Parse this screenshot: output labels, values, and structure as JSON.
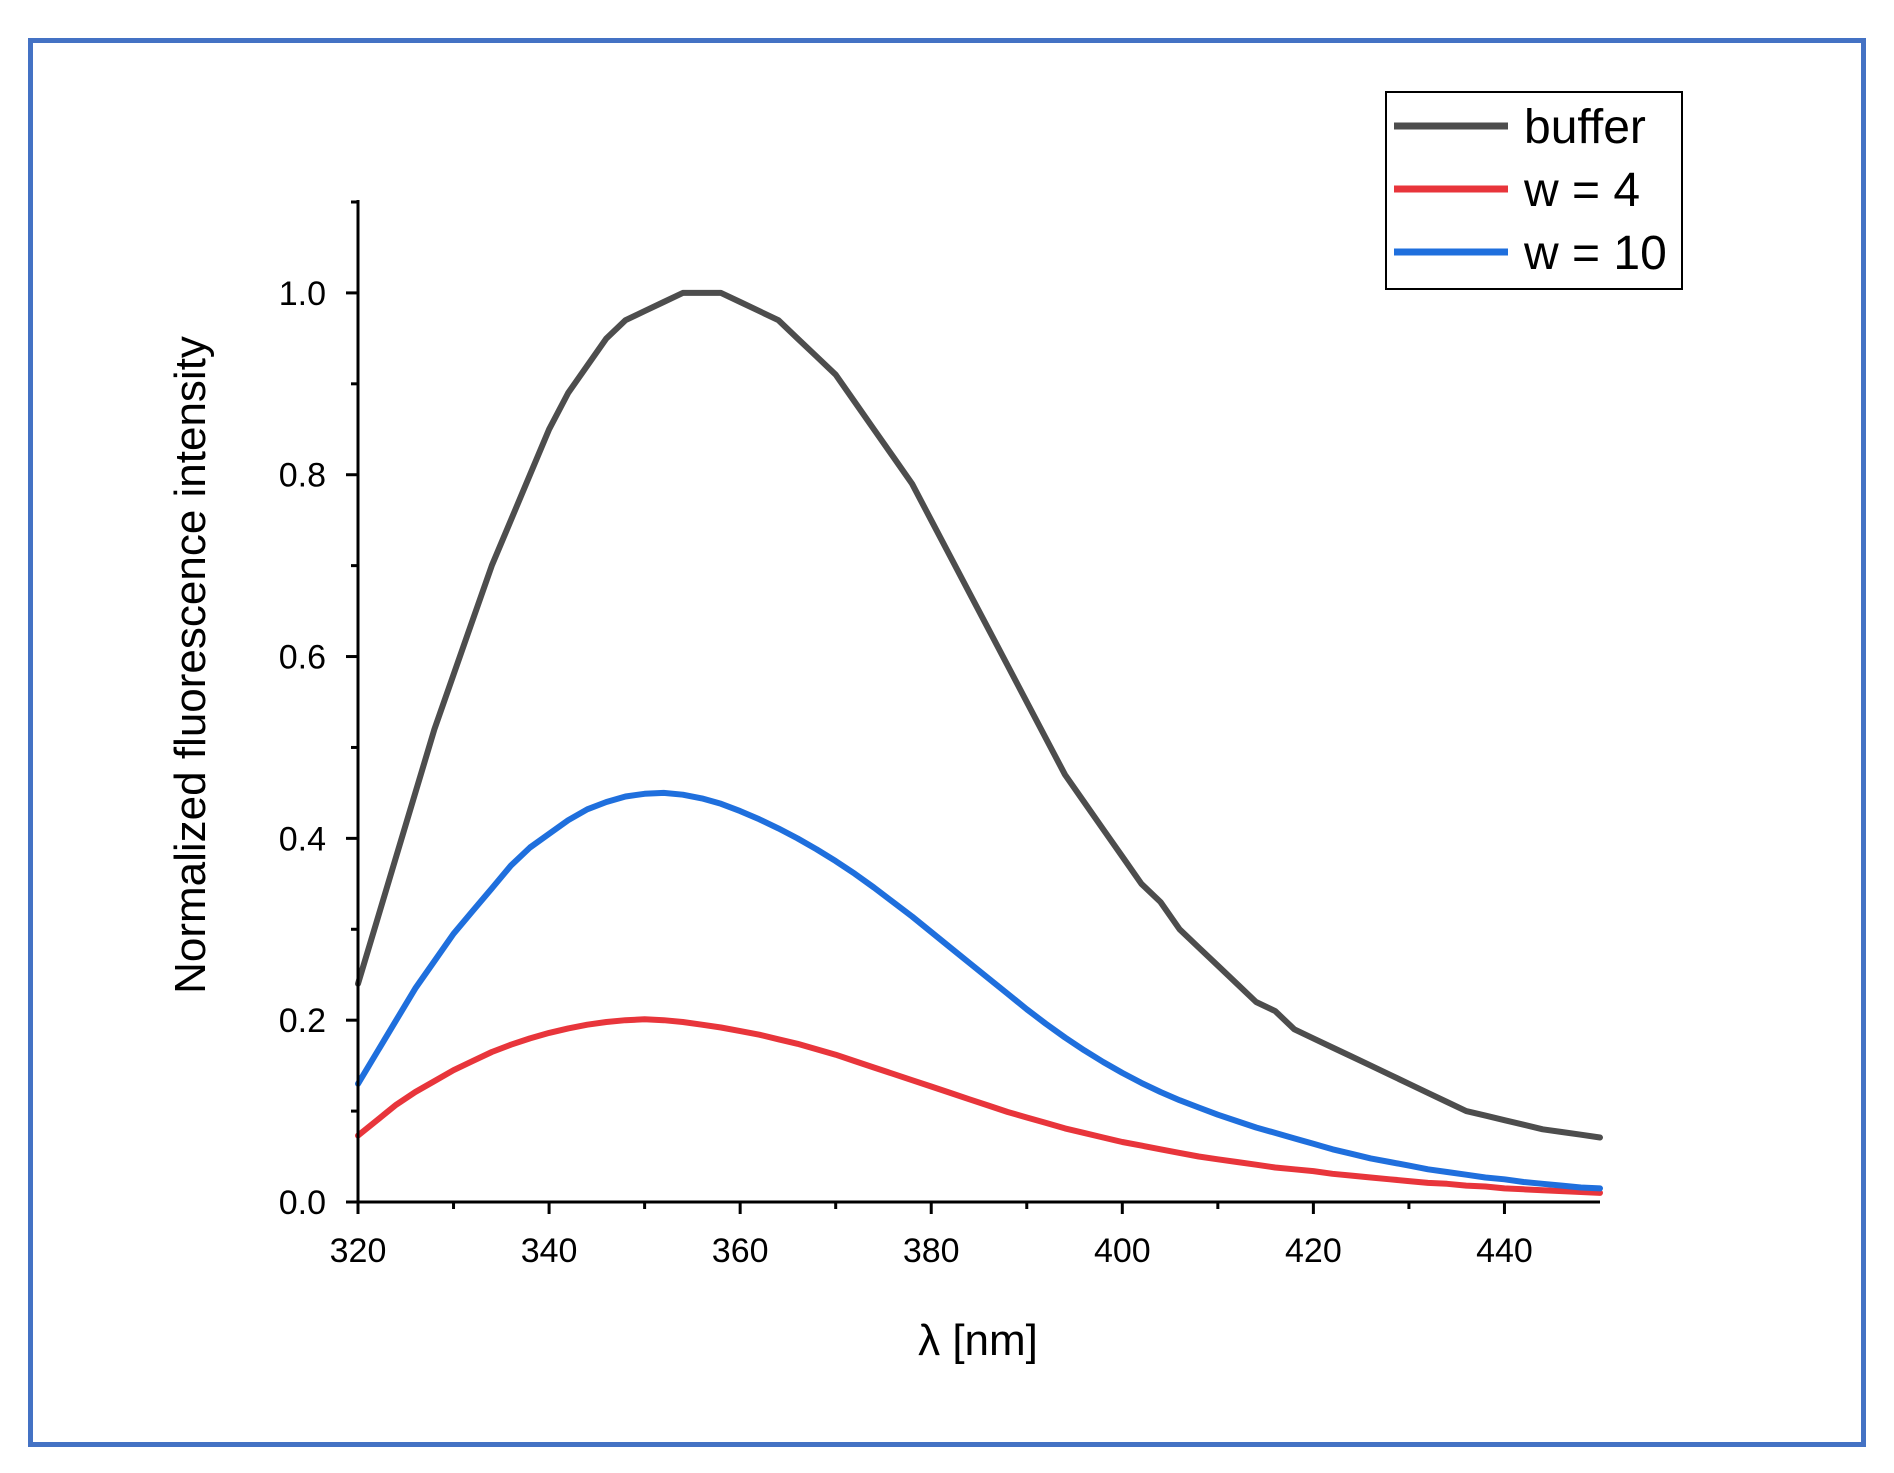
{
  "colors": {
    "frame": "#4472c4",
    "axis": "#000000"
  },
  "chart_data": {
    "type": "line",
    "title": "",
    "xlabel": "λ [nm]",
    "ylabel": "Normalized fluorescence intensity",
    "xlim": [
      320,
      450
    ],
    "ylim": [
      0.0,
      1.1
    ],
    "xticks": [
      320,
      340,
      360,
      380,
      400,
      420,
      440
    ],
    "xtick_labels": [
      "320",
      "340",
      "360",
      "380",
      "400",
      "420",
      "440"
    ],
    "yticks": [
      0.0,
      0.2,
      0.4,
      0.6,
      0.8,
      1.0
    ],
    "ytick_labels": [
      "0.0",
      "0.2",
      "0.4",
      "0.6",
      "0.8",
      "1.0"
    ],
    "legend_position": "top-right",
    "series": [
      {
        "name": "buffer",
        "color": "#4d4d4d",
        "x": [
          320,
          322,
          324,
          326,
          328,
          330,
          332,
          334,
          336,
          338,
          340,
          342,
          344,
          346,
          348,
          350,
          352,
          354,
          356,
          358,
          360,
          362,
          364,
          366,
          368,
          370,
          372,
          374,
          376,
          378,
          380,
          382,
          384,
          386,
          388,
          390,
          392,
          394,
          396,
          398,
          400,
          402,
          404,
          406,
          408,
          410,
          412,
          414,
          416,
          418,
          420,
          422,
          424,
          426,
          428,
          430,
          432,
          434,
          436,
          438,
          440,
          442,
          444,
          446,
          448,
          450
        ],
        "values": [
          0.24,
          0.31,
          0.38,
          0.45,
          0.52,
          0.58,
          0.64,
          0.7,
          0.75,
          0.8,
          0.85,
          0.89,
          0.92,
          0.95,
          0.97,
          0.98,
          0.99,
          1.0,
          1.0,
          1.0,
          0.99,
          0.98,
          0.97,
          0.95,
          0.93,
          0.91,
          0.88,
          0.85,
          0.82,
          0.79,
          0.75,
          0.71,
          0.67,
          0.63,
          0.59,
          0.55,
          0.51,
          0.47,
          0.44,
          0.41,
          0.38,
          0.35,
          0.33,
          0.3,
          0.28,
          0.26,
          0.24,
          0.22,
          0.21,
          0.19,
          0.18,
          0.17,
          0.16,
          0.15,
          0.14,
          0.13,
          0.12,
          0.11,
          0.1,
          0.095,
          0.09,
          0.085,
          0.08,
          0.077,
          0.074,
          0.071
        ]
      },
      {
        "name": "w = 4",
        "color": "#e8353b",
        "x": [
          320,
          322,
          324,
          326,
          328,
          330,
          332,
          334,
          336,
          338,
          340,
          342,
          344,
          346,
          348,
          350,
          352,
          354,
          356,
          358,
          360,
          362,
          364,
          366,
          368,
          370,
          372,
          374,
          376,
          378,
          380,
          382,
          384,
          386,
          388,
          390,
          392,
          394,
          396,
          398,
          400,
          402,
          404,
          406,
          408,
          410,
          412,
          414,
          416,
          418,
          420,
          422,
          424,
          426,
          428,
          430,
          432,
          434,
          436,
          438,
          440,
          442,
          444,
          446,
          448,
          450
        ],
        "values": [
          0.073,
          0.09,
          0.107,
          0.121,
          0.133,
          0.145,
          0.155,
          0.165,
          0.173,
          0.18,
          0.186,
          0.191,
          0.195,
          0.198,
          0.2,
          0.201,
          0.2,
          0.198,
          0.195,
          0.192,
          0.188,
          0.184,
          0.179,
          0.174,
          0.168,
          0.162,
          0.155,
          0.148,
          0.141,
          0.134,
          0.127,
          0.12,
          0.113,
          0.106,
          0.099,
          0.093,
          0.087,
          0.081,
          0.076,
          0.071,
          0.066,
          0.062,
          0.058,
          0.054,
          0.05,
          0.047,
          0.044,
          0.041,
          0.038,
          0.036,
          0.034,
          0.031,
          0.029,
          0.027,
          0.025,
          0.023,
          0.021,
          0.02,
          0.018,
          0.017,
          0.015,
          0.014,
          0.013,
          0.012,
          0.011,
          0.01
        ]
      },
      {
        "name": "w = 10",
        "color": "#1f6fdd",
        "x": [
          320,
          322,
          324,
          326,
          328,
          330,
          332,
          334,
          336,
          338,
          340,
          342,
          344,
          346,
          348,
          350,
          352,
          354,
          356,
          358,
          360,
          362,
          364,
          366,
          368,
          370,
          372,
          374,
          376,
          378,
          380,
          382,
          384,
          386,
          388,
          390,
          392,
          394,
          396,
          398,
          400,
          402,
          404,
          406,
          408,
          410,
          412,
          414,
          416,
          418,
          420,
          422,
          424,
          426,
          428,
          430,
          432,
          434,
          436,
          438,
          440,
          442,
          444,
          446,
          448,
          450
        ],
        "values": [
          0.13,
          0.165,
          0.2,
          0.235,
          0.265,
          0.295,
          0.32,
          0.345,
          0.37,
          0.39,
          0.405,
          0.42,
          0.432,
          0.44,
          0.446,
          0.449,
          0.45,
          0.448,
          0.444,
          0.438,
          0.43,
          0.421,
          0.411,
          0.4,
          0.388,
          0.375,
          0.361,
          0.346,
          0.33,
          0.314,
          0.297,
          0.28,
          0.263,
          0.246,
          0.229,
          0.212,
          0.196,
          0.181,
          0.167,
          0.154,
          0.142,
          0.131,
          0.121,
          0.112,
          0.104,
          0.096,
          0.089,
          0.082,
          0.076,
          0.07,
          0.064,
          0.058,
          0.053,
          0.048,
          0.044,
          0.04,
          0.036,
          0.033,
          0.03,
          0.027,
          0.025,
          0.022,
          0.02,
          0.018,
          0.016,
          0.015
        ]
      }
    ]
  }
}
